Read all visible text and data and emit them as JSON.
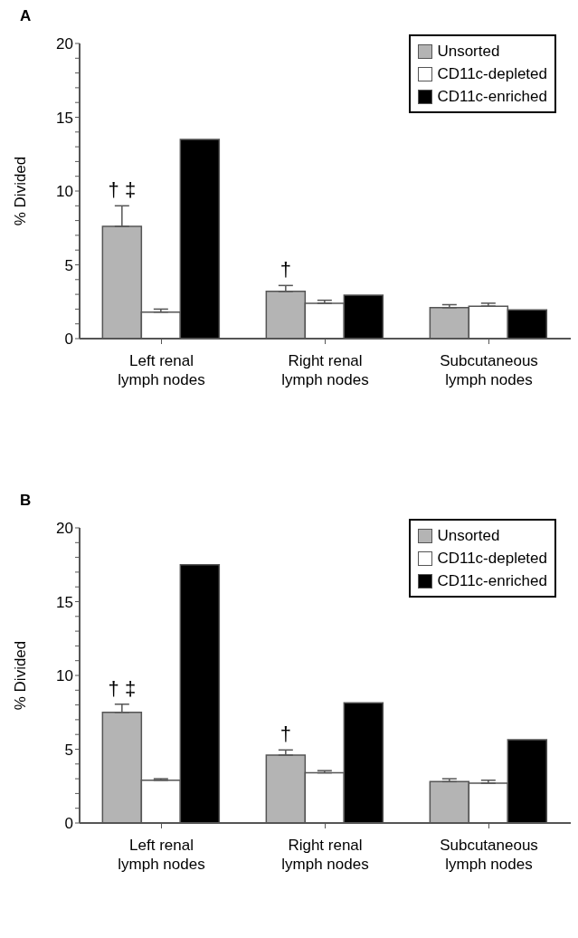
{
  "chart_data": [
    {
      "type": "bar",
      "title": "A",
      "ylabel": "% Divided",
      "categories": [
        "Left renal lymph nodes",
        "Right renal lymph nodes",
        "Subcutaneous lymph nodes"
      ],
      "series": [
        {
          "name": "Unsorted",
          "color": "#b4b4b4",
          "values": [
            7.6,
            3.2,
            2.1
          ],
          "errors": [
            [
              7.6,
              9.0
            ],
            [
              3.2,
              3.6
            ],
            [
              2.1,
              2.3
            ]
          ]
        },
        {
          "name": "CD11c-depleted",
          "color": "#ffffff",
          "values": [
            1.8,
            2.4,
            2.2
          ],
          "errors": [
            [
              1.8,
              2.0
            ],
            [
              2.4,
              2.6
            ],
            [
              2.2,
              2.4
            ]
          ]
        },
        {
          "name": "CD11c-enriched",
          "color": "#000000",
          "values": [
            13.5,
            2.95,
            1.95
          ]
        }
      ],
      "ylim": [
        0,
        20
      ],
      "yticks": [
        0,
        {
          "value": 1,
          "label": null
        },
        {
          "value": 2,
          "label": null
        },
        {
          "value": 3,
          "label": null
        },
        {
          "value": 4,
          "label": null
        },
        5,
        {
          "value": 6,
          "label": null
        },
        {
          "value": 7,
          "label": null
        },
        {
          "value": 8,
          "label": null
        },
        {
          "value": 9,
          "label": null
        },
        10,
        {
          "value": 11,
          "label": null
        },
        {
          "value": 12,
          "label": null
        },
        {
          "value": 13,
          "label": null
        },
        {
          "value": 14,
          "label": null
        },
        15,
        {
          "value": 16,
          "label": null
        },
        {
          "value": 17,
          "label": null
        },
        {
          "value": 18,
          "label": null
        },
        {
          "value": 19,
          "label": null
        },
        20
      ],
      "grid": false,
      "legend": "top right",
      "annotations": [
        "† ‡",
        "†"
      ]
    },
    {
      "type": "bar",
      "title": "B",
      "ylabel": "% Divided",
      "categories": [
        "Left renal lymph nodes",
        "Right renal lymph nodes",
        "Subcutaneous lymph nodes"
      ],
      "series": [
        {
          "name": "Unsorted",
          "color": "#b4b4b4",
          "values": [
            7.5,
            4.6,
            2.8
          ],
          "errors": [
            [
              7.5,
              8.05
            ],
            [
              4.6,
              4.95
            ],
            [
              2.8,
              3.0
            ]
          ]
        },
        {
          "name": "CD11c-depleted",
          "color": "#ffffff",
          "values": [
            2.9,
            3.4,
            2.7
          ],
          "errors": [
            [
              2.9,
              3.0
            ],
            [
              3.4,
              3.55
            ],
            [
              2.7,
              2.9
            ]
          ]
        },
        {
          "name": "CD11c-enriched",
          "color": "#000000",
          "values": [
            17.5,
            8.15,
            5.65
          ]
        }
      ],
      "ylim": [
        0,
        20
      ],
      "yticks": [
        0,
        {
          "value": 1,
          "label": null
        },
        {
          "value": 2,
          "label": null
        },
        {
          "value": 3,
          "label": null
        },
        {
          "value": 4,
          "label": null
        },
        5,
        {
          "value": 6,
          "label": null
        },
        {
          "value": 7,
          "label": null
        },
        {
          "value": 8,
          "label": null
        },
        {
          "value": 9,
          "label": null
        },
        10,
        {
          "value": 11,
          "label": null
        },
        {
          "value": 12,
          "label": null
        },
        {
          "value": 13,
          "label": null
        },
        {
          "value": 14,
          "label": null
        },
        15,
        {
          "value": 16,
          "label": null
        },
        {
          "value": 17,
          "label": null
        },
        {
          "value": 18,
          "label": null
        },
        {
          "value": 19,
          "label": null
        },
        20
      ],
      "grid": false,
      "legend": "top right",
      "annotations": [
        "† ‡",
        "†"
      ]
    }
  ]
}
